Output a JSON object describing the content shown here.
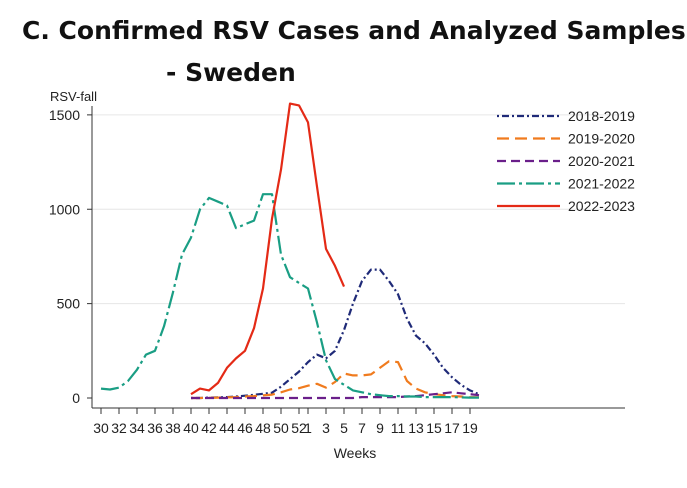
{
  "title_line1": "C. Confirmed RSV Cases and Analyzed Samples",
  "title_line2": "- Sweden",
  "chart_data": {
    "type": "line",
    "ylabel": "RSV-fall",
    "xlabel": "Weeks",
    "ylim": [
      0,
      1600
    ],
    "yticks": [
      0,
      500,
      1000,
      1500
    ],
    "categories": [
      "30",
      "31",
      "32",
      "33",
      "34",
      "35",
      "36",
      "37",
      "38",
      "39",
      "40",
      "41",
      "42",
      "43",
      "44",
      "45",
      "46",
      "47",
      "48",
      "49",
      "50",
      "51",
      "52",
      "1",
      "2",
      "3",
      "4",
      "5",
      "6",
      "7",
      "8",
      "9",
      "10",
      "11",
      "12",
      "13",
      "14",
      "15",
      "16",
      "17",
      "18",
      "19",
      "20"
    ],
    "xtick_labels": [
      "30",
      "32",
      "34",
      "36",
      "38",
      "40",
      "42",
      "44",
      "46",
      "48",
      "50",
      "52",
      "1",
      "3",
      "5",
      "7",
      "9",
      "11",
      "13",
      "15",
      "17",
      "19"
    ],
    "legend_position": "top-right",
    "series": [
      {
        "name": "2018-2019",
        "color": "#1f2a78",
        "dash": "2 3 7 3",
        "values": [
          null,
          null,
          null,
          null,
          null,
          null,
          null,
          null,
          null,
          null,
          0,
          0,
          2,
          3,
          5,
          8,
          12,
          17,
          22,
          28,
          60,
          100,
          140,
          190,
          230,
          210,
          250,
          360,
          500,
          620,
          680,
          680,
          620,
          550,
          420,
          330,
          290,
          230,
          160,
          110,
          70,
          40,
          20
        ]
      },
      {
        "name": "2019-2020",
        "color": "#f07b1e",
        "dash": "12 6",
        "values": [
          null,
          null,
          null,
          null,
          null,
          null,
          null,
          null,
          null,
          null,
          0,
          0,
          1,
          2,
          3,
          5,
          8,
          10,
          14,
          18,
          30,
          45,
          52,
          65,
          75,
          55,
          85,
          130,
          120,
          120,
          125,
          160,
          195,
          190,
          90,
          50,
          30,
          20,
          15,
          10,
          8,
          5,
          3
        ]
      },
      {
        "name": "2020-2021",
        "color": "#6a1f8a",
        "dash": "9 5",
        "values": [
          null,
          null,
          null,
          null,
          null,
          null,
          null,
          null,
          null,
          null,
          0,
          0,
          0,
          0,
          0,
          0,
          0,
          0,
          0,
          0,
          0,
          0,
          0,
          0,
          0,
          0,
          0,
          0,
          0,
          5,
          5,
          5,
          5,
          5,
          8,
          10,
          15,
          20,
          25,
          30,
          25,
          20,
          15
        ]
      },
      {
        "name": "2021-2022",
        "color": "#1a9e84",
        "dash": "18 4 3 4",
        "values": [
          50,
          45,
          55,
          90,
          150,
          230,
          250,
          380,
          560,
          760,
          850,
          1000,
          1060,
          1040,
          1020,
          900,
          920,
          940,
          1080,
          1080,
          760,
          640,
          610,
          580,
          400,
          200,
          100,
          70,
          40,
          30,
          20,
          15,
          10,
          10,
          8,
          8,
          5,
          5,
          5,
          5,
          3,
          2,
          2
        ]
      },
      {
        "name": "2022-2023",
        "color": "#e42a16",
        "dash": "",
        "values": [
          null,
          null,
          null,
          null,
          null,
          null,
          null,
          null,
          null,
          null,
          20,
          50,
          40,
          80,
          160,
          210,
          250,
          370,
          580,
          950,
          1210,
          1560,
          1550,
          1460,
          1120,
          790,
          700,
          590,
          null,
          null,
          null,
          null,
          null,
          null,
          null,
          null,
          null,
          null,
          null,
          null,
          null,
          null,
          null
        ]
      }
    ]
  }
}
